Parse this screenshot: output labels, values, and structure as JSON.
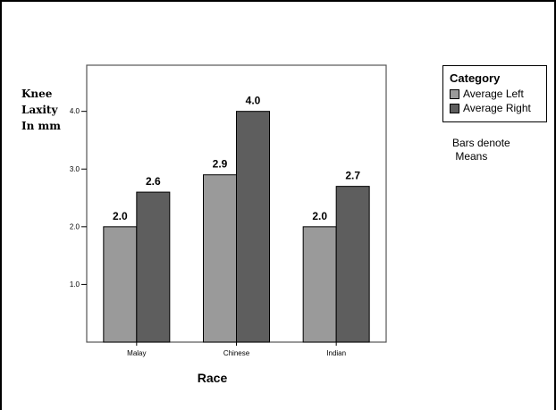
{
  "chart_data": {
    "type": "bar",
    "categories": [
      "Malay",
      "Chinese",
      "Indian"
    ],
    "series": [
      {
        "name": "Average Left",
        "values": [
          2.0,
          2.9,
          2.0
        ],
        "labels": [
          "2.0",
          "2.9",
          "2.0"
        ],
        "color": "#9a9a9a"
      },
      {
        "name": "Average Right",
        "values": [
          2.6,
          4.0,
          2.7
        ],
        "labels": [
          "2.6",
          "4.0",
          "2.7"
        ],
        "color": "#5e5e5e"
      }
    ],
    "title": "",
    "xlabel": "Race",
    "ylabel": "Knee\nLaxity\nIn mm",
    "yticks": [
      "1.0",
      "2.0",
      "3.0",
      "4.0"
    ],
    "ylim": [
      0,
      4.8
    ],
    "grid": false,
    "legend": {
      "title": "Category",
      "position": "right"
    },
    "annotation": "Bars denote\n Means"
  }
}
